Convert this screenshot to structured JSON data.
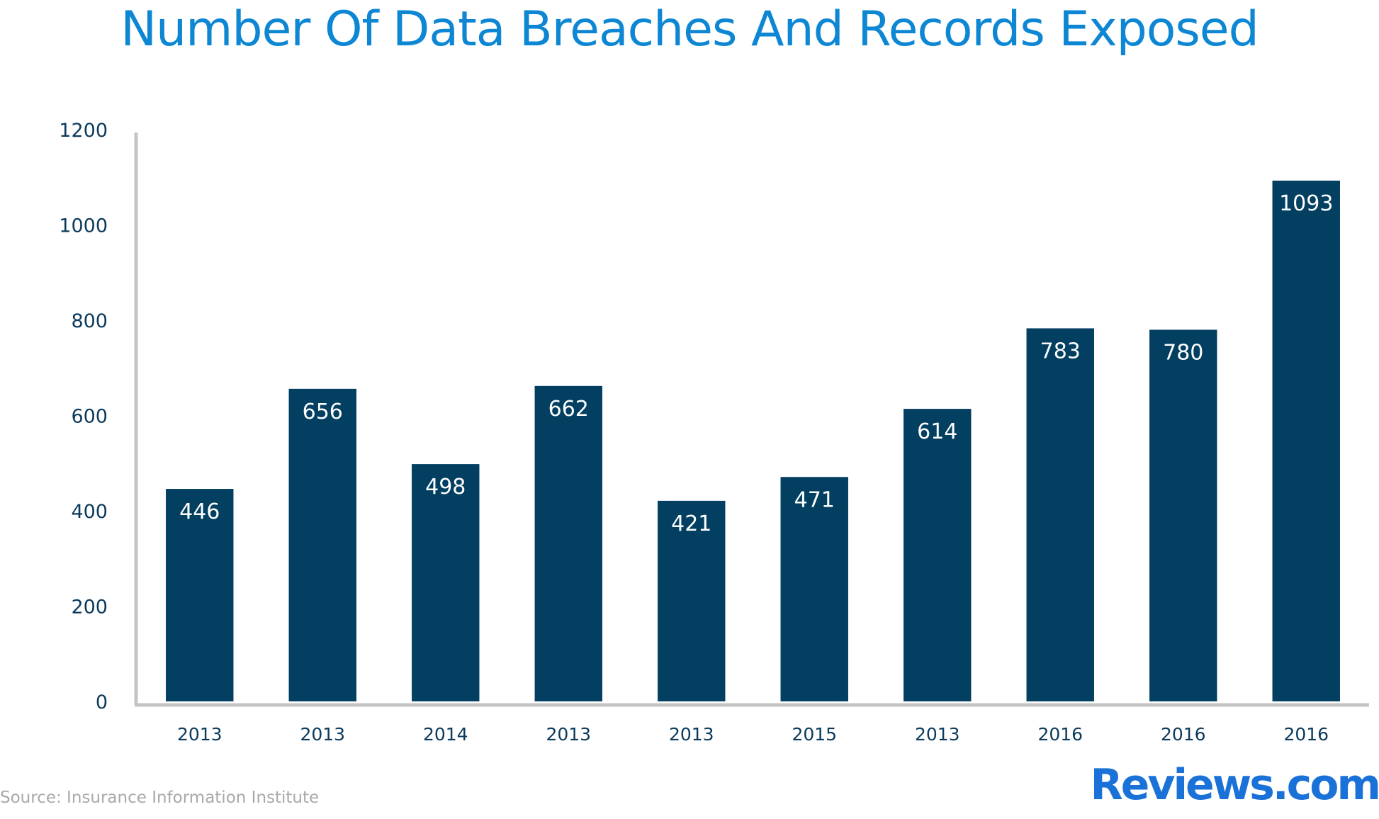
{
  "chart_data": {
    "type": "bar",
    "title": "Number Of Data Breaches And Records Exposed",
    "categories": [
      "2013",
      "2013",
      "2014",
      "2013",
      "2013",
      "2015",
      "2013",
      "2016",
      "2016",
      "2016"
    ],
    "values": [
      446,
      656,
      498,
      662,
      421,
      471,
      614,
      783,
      780,
      1093
    ],
    "ylim": [
      0,
      1200
    ],
    "yticks": [
      0,
      200,
      400,
      600,
      800,
      1000,
      1200
    ],
    "xlabel": "",
    "ylabel": "",
    "grid": false,
    "legend": "none",
    "colors": {
      "bar": "#033f61",
      "axis": "#c4c4c4",
      "title": "#0d87d3",
      "label": "#0b3a5c",
      "value": "#ffffff"
    }
  },
  "footer": {
    "source": "Source: Insurance Information Institute",
    "brand": "Reviews.com",
    "brand_color": "#1a72d9"
  }
}
